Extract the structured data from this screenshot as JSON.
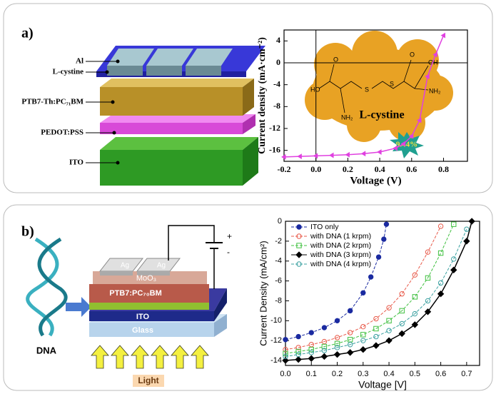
{
  "panel_a": {
    "label": "a)",
    "layers": [
      "Al",
      "L-cystine",
      "PTB7-Th:PC₇₁BM",
      "PEDOT:PSS",
      "ITO"
    ],
    "molecule_atoms": [
      "HO",
      "O",
      "NH₂",
      "S",
      "S",
      "O",
      "OH",
      "NH₂"
    ]
  },
  "panel_b": {
    "label": "b)",
    "dna": "DNA",
    "layers": [
      "Ag",
      "Ag",
      "MoO₃",
      "PTB7:PC₇₀BM",
      "ITO",
      "Glass"
    ],
    "light": "Light",
    "battery": [
      "+",
      "-"
    ]
  },
  "chart_data": [
    {
      "type": "line",
      "xlabel": "Voltage (V)",
      "ylabel": "Current density (mA·cm⁻²)",
      "annotations": [
        "L-cystine",
        "9.44%"
      ],
      "xlim": [
        -0.2,
        0.95
      ],
      "ylim": [
        -18,
        6
      ],
      "xticks": [
        -0.2,
        {
          "value": 0,
          "label": "0.0"
        },
        0.2,
        0.4,
        0.6,
        0.8
      ],
      "yticks": [
        4,
        0,
        -4,
        -8,
        -12,
        -16
      ],
      "zero_lines": true,
      "series": [
        {
          "color": "#e040e0",
          "marker": "triangle",
          "dash": false,
          "x": [
            -0.2,
            -0.1,
            0,
            0.1,
            0.2,
            0.3,
            0.4,
            0.5,
            0.55,
            0.6,
            0.65,
            0.7,
            0.75,
            0.8
          ],
          "values": [
            -17.2,
            -17.1,
            -17.0,
            -16.9,
            -16.8,
            -16.6,
            -16.3,
            -15.6,
            -14.8,
            -13.4,
            -10.5,
            -2.5,
            1.5,
            5
          ]
        }
      ]
    },
    {
      "type": "line",
      "xlabel": "Voltage [V]",
      "ylabel": "Current Density (mA/cm²)",
      "xlim": [
        0,
        0.75
      ],
      "ylim": [
        -14.5,
        0
      ],
      "xticks": [
        {
          "value": 0,
          "label": "0.0"
        },
        0.1,
        0.2,
        0.3,
        0.4,
        0.5,
        0.6,
        0.7
      ],
      "yticks": [
        0,
        -2,
        -4,
        -6,
        -8,
        -10,
        -12,
        -14
      ],
      "legend": "upper left",
      "series": [
        {
          "name": "ITO only",
          "color": "#1a2aa0",
          "marker": "circle",
          "dash": true,
          "x": [
            0,
            0.05,
            0.1,
            0.15,
            0.2,
            0.25,
            0.3,
            0.33,
            0.36,
            0.38,
            0.39
          ],
          "values": [
            -11.9,
            -11.6,
            -11.2,
            -10.7,
            -10.0,
            -9.0,
            -7.2,
            -5.6,
            -3.6,
            -1.8,
            -0.3
          ]
        },
        {
          "name": "with DNA (1 krpm)",
          "color": "#e85a4a",
          "marker": "circle-open",
          "dash": true,
          "x": [
            0,
            0.05,
            0.1,
            0.15,
            0.2,
            0.25,
            0.3,
            0.35,
            0.4,
            0.45,
            0.5,
            0.55,
            0.6
          ],
          "values": [
            -12.9,
            -12.7,
            -12.4,
            -12.1,
            -11.7,
            -11.2,
            -10.6,
            -9.8,
            -8.7,
            -7.3,
            -5.4,
            -3.1,
            -0.5
          ]
        },
        {
          "name": "with DNA (2 krpm)",
          "color": "#40c040",
          "marker": "square-open",
          "dash": true,
          "x": [
            0,
            0.05,
            0.1,
            0.15,
            0.2,
            0.25,
            0.3,
            0.35,
            0.4,
            0.45,
            0.5,
            0.55,
            0.6,
            0.65
          ],
          "values": [
            -13.3,
            -13.1,
            -12.9,
            -12.6,
            -12.3,
            -11.9,
            -11.4,
            -10.8,
            -10.0,
            -9.0,
            -7.6,
            -5.7,
            -3.2,
            -0.3
          ]
        },
        {
          "name": "with DNA (3 krpm)",
          "color": "#000000",
          "marker": "diamond",
          "dash": false,
          "x": [
            0,
            0.05,
            0.1,
            0.15,
            0.2,
            0.25,
            0.3,
            0.35,
            0.4,
            0.45,
            0.5,
            0.55,
            0.6,
            0.65,
            0.7,
            0.72
          ],
          "values": [
            -14.0,
            -13.9,
            -13.8,
            -13.6,
            -13.4,
            -13.2,
            -12.9,
            -12.5,
            -12.0,
            -11.3,
            -10.4,
            -9.1,
            -7.3,
            -4.9,
            -2.0,
            0
          ]
        },
        {
          "name": "with DNA (4 krpm)",
          "color": "#3aa0a0",
          "marker": "circle-open",
          "dash": true,
          "x": [
            0,
            0.05,
            0.1,
            0.15,
            0.2,
            0.25,
            0.3,
            0.35,
            0.4,
            0.45,
            0.5,
            0.55,
            0.6,
            0.65,
            0.7
          ],
          "values": [
            -13.6,
            -13.4,
            -13.2,
            -13.0,
            -12.7,
            -12.4,
            -12.0,
            -11.6,
            -11.0,
            -10.3,
            -9.3,
            -8.0,
            -6.2,
            -3.8,
            -0.8
          ]
        }
      ]
    }
  ]
}
